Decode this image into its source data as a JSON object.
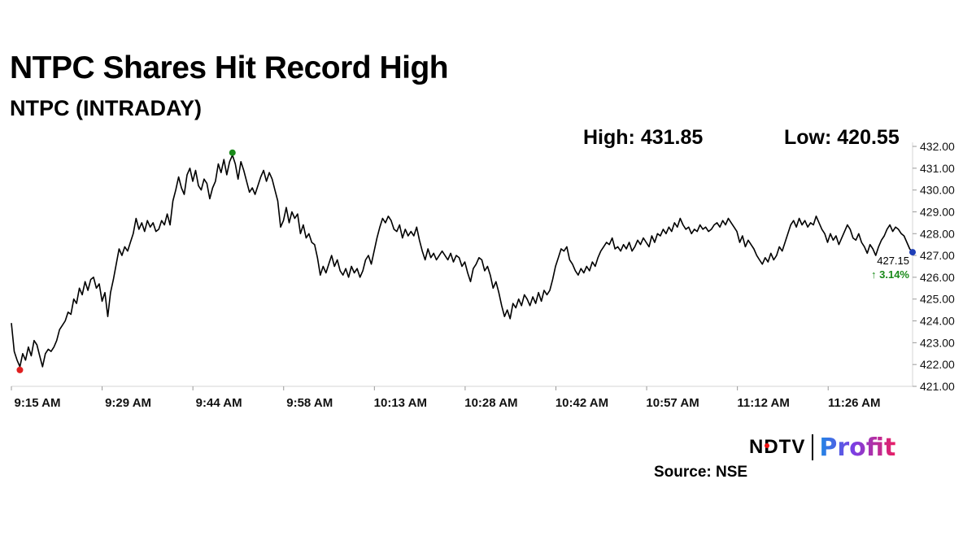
{
  "header": {
    "title": "NTPC Shares Hit Record High",
    "subtitle": "NTPC (INTRADAY)",
    "high_label": "High: 431.85",
    "low_label": "Low: 420.55"
  },
  "footer": {
    "source": "Source: NSE",
    "logo_left": "NDTV",
    "logo_right": "Profit"
  },
  "chart_data": {
    "type": "line",
    "series": [
      {
        "values": [
          423.9,
          422.6,
          422.2,
          421.9,
          422.5,
          422.2,
          422.8,
          422.4,
          423.1,
          422.9,
          422.4,
          421.9,
          422.5,
          422.7,
          422.6,
          422.8,
          423.1,
          423.6,
          423.8,
          424.0,
          424.4,
          424.3,
          425.0,
          424.8,
          425.5,
          425.2,
          425.8,
          425.4,
          425.9,
          426.0,
          425.5,
          425.7,
          424.9,
          425.3,
          424.2,
          425.3,
          425.9,
          426.6,
          427.3,
          427.0,
          427.4,
          427.2,
          427.6,
          428.0,
          428.7,
          428.2,
          428.5,
          428.1,
          428.6,
          428.3,
          428.5,
          428.1,
          428.2,
          428.6,
          428.4,
          428.9,
          428.4,
          429.5,
          430.0,
          430.6,
          430.1,
          429.8,
          430.7,
          431.0,
          430.4,
          430.9,
          430.2,
          430.0,
          430.5,
          430.3,
          429.6,
          430.1,
          430.4,
          431.2,
          430.8,
          431.4,
          430.7,
          431.3,
          431.6,
          431.2,
          430.5,
          431.3,
          430.9,
          430.4,
          429.9,
          430.1,
          429.8,
          430.2,
          430.6,
          430.9,
          430.4,
          430.8,
          430.5,
          430.0,
          429.5,
          428.3,
          428.6,
          429.2,
          428.5,
          429.0,
          428.7,
          428.9,
          428.0,
          428.4,
          427.8,
          428.0,
          427.6,
          427.5,
          426.9,
          426.1,
          426.5,
          426.2,
          426.6,
          427.0,
          426.5,
          426.8,
          426.3,
          426.1,
          426.4,
          426.0,
          426.5,
          426.2,
          426.4,
          426.0,
          426.3,
          426.8,
          427.0,
          426.6,
          427.2,
          427.8,
          428.3,
          428.7,
          428.5,
          428.8,
          428.6,
          428.2,
          428.1,
          428.4,
          427.8,
          428.2,
          427.9,
          428.1,
          427.9,
          428.3,
          427.7,
          427.2,
          426.8,
          427.3,
          426.9,
          427.1,
          426.8,
          427.0,
          427.2,
          427.0,
          426.8,
          427.1,
          426.7,
          427.0,
          426.9,
          426.5,
          426.7,
          426.2,
          425.8,
          426.4,
          426.6,
          426.9,
          426.8,
          426.3,
          426.5,
          426.1,
          425.5,
          425.8,
          425.3,
          424.7,
          424.2,
          424.5,
          424.1,
          424.8,
          424.6,
          425.0,
          424.7,
          425.2,
          425.0,
          424.7,
          425.1,
          424.8,
          425.3,
          424.9,
          425.4,
          425.2,
          425.4,
          425.9,
          426.5,
          426.9,
          427.3,
          427.2,
          427.4,
          426.8,
          426.6,
          426.3,
          426.1,
          426.4,
          426.2,
          426.5,
          426.3,
          426.7,
          426.5,
          426.9,
          427.2,
          427.4,
          427.6,
          427.5,
          427.8,
          427.3,
          427.4,
          427.2,
          427.5,
          427.3,
          427.6,
          427.2,
          427.4,
          427.7,
          427.5,
          427.8,
          427.6,
          427.4,
          427.9,
          427.6,
          428.0,
          427.9,
          428.2,
          428.0,
          428.3,
          428.1,
          428.5,
          428.3,
          428.7,
          428.4,
          428.2,
          428.3,
          428.0,
          428.2,
          428.1,
          428.4,
          428.2,
          428.3,
          428.1,
          428.2,
          428.4,
          428.5,
          428.3,
          428.6,
          428.4,
          428.7,
          428.5,
          428.3,
          428.1,
          427.6,
          427.9,
          427.4,
          427.7,
          427.5,
          427.3,
          427.0,
          426.8,
          426.6,
          426.9,
          426.7,
          427.1,
          426.8,
          427.0,
          427.4,
          427.2,
          427.6,
          428.0,
          428.4,
          428.6,
          428.3,
          428.7,
          428.4,
          428.6,
          428.3,
          428.5,
          428.4,
          428.8,
          428.5,
          428.2,
          428.0,
          427.6,
          428.0,
          427.7,
          427.9,
          427.5,
          427.8,
          428.1,
          428.4,
          428.2,
          427.8,
          427.7,
          428.0,
          427.6,
          427.4,
          427.1,
          427.5,
          427.3,
          427.0,
          427.4,
          427.7,
          427.9,
          428.2,
          428.4,
          428.1,
          428.3,
          428.2,
          428.0,
          427.9,
          427.6,
          427.3,
          427.15
        ],
        "high_marker": "431.85",
        "low_marker": "420.55",
        "last_value": "427.15",
        "change": "↑ 3.14%"
      }
    ],
    "x_ticks": [
      "9:15 AM",
      "9:29 AM",
      "9:44 AM",
      "9:58 AM",
      "10:13 AM",
      "10:28 AM",
      "10:42 AM",
      "10:57 AM",
      "11:12 AM",
      "11:26 AM"
    ],
    "y_ticks": [
      "432.00",
      "431.00",
      "430.00",
      "429.00",
      "428.00",
      "427.00",
      "426.00",
      "425.00",
      "424.00",
      "423.00",
      "422.00",
      "421.00"
    ],
    "ylim": [
      421.0,
      432.0
    ],
    "grid": false,
    "colors": {
      "line": "#000000",
      "high_dot": "#1a8a1a",
      "low_dot": "#e02020",
      "last_dot": "#1f3fb8",
      "change": "#1a8a1a"
    }
  }
}
